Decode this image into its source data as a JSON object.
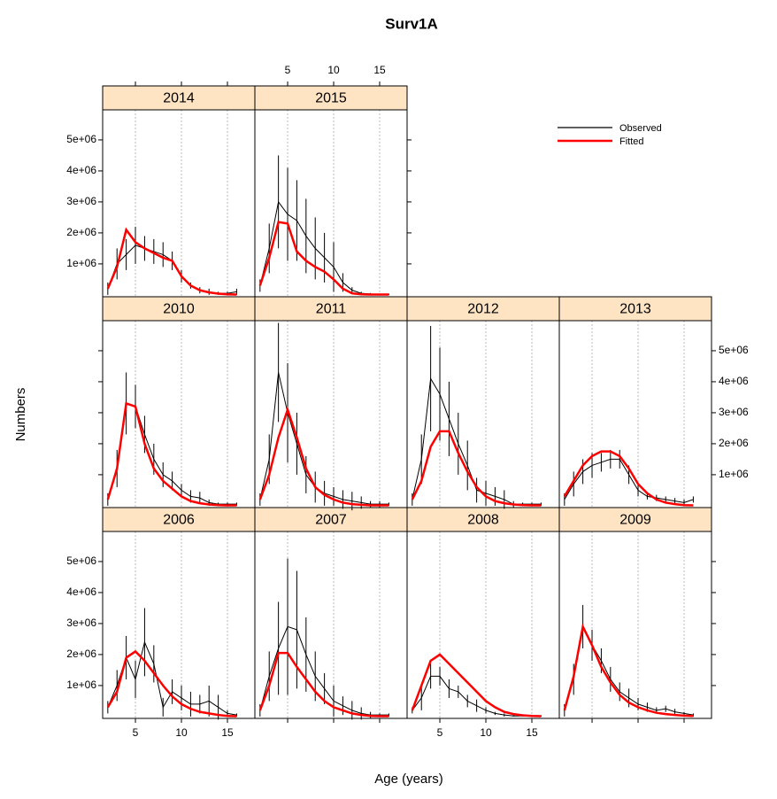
{
  "chart_data": {
    "type": "line",
    "title": "Surv1A",
    "x_label": "Age (years)",
    "y_label": "Numbers",
    "x": [
      2,
      3,
      4,
      5,
      6,
      7,
      8,
      9,
      10,
      11,
      12,
      13,
      14,
      15,
      16
    ],
    "xlim": [
      1.44,
      17.98
    ],
    "xticks": [
      5,
      10,
      15
    ],
    "ylim": [
      -60000,
      5970000
    ],
    "yticks": [
      {
        "value": 1000000,
        "label": "1e+06"
      },
      {
        "value": 2000000,
        "label": "2e+06"
      },
      {
        "value": 3000000,
        "label": "3e+06"
      },
      {
        "value": 4000000,
        "label": "4e+06"
      },
      {
        "value": 5000000,
        "label": "5e+06"
      }
    ],
    "grid": true,
    "legend": "top-right",
    "series": [
      {
        "name": "Observed",
        "color": "#000000"
      },
      {
        "name": "Fitted",
        "color": "#ff0000"
      }
    ],
    "panels": [
      {
        "title": "2006",
        "observed": [
          300000.0,
          1000000.0,
          1900000.0,
          1200000.0,
          2400000.0,
          1700000.0,
          300000.0,
          800000.0,
          600000.0,
          400000.0,
          400000.0,
          500000.0,
          300000.0,
          100000.0,
          50000.0
        ],
        "error": [
          200000.0,
          500000.0,
          700000.0,
          600000.0,
          1100000.0,
          600000.0,
          300000.0,
          400000.0,
          400000.0,
          400000.0,
          300000.0,
          500000.0,
          400000.0,
          100000.0,
          50000.0
        ],
        "fitted": [
          300000.0,
          800000.0,
          1900000.0,
          2100000.0,
          1800000.0,
          1400000.0,
          1000000.0,
          650000.0,
          400000.0,
          250000.0,
          150000.0,
          100000.0,
          50000.0,
          20000.0,
          10000.0
        ]
      },
      {
        "title": "2007",
        "observed": [
          200000.0,
          1300000.0,
          2200000.0,
          2900000.0,
          2800000.0,
          2000000.0,
          1300000.0,
          900000.0,
          500000.0,
          350000.0,
          200000.0,
          100000.0,
          50000.0,
          50000.0,
          50000.0
        ],
        "error": [
          200000.0,
          800000.0,
          1500000.0,
          2200000.0,
          1900000.0,
          1200000.0,
          800000.0,
          500000.0,
          500000.0,
          300000.0,
          300000.0,
          200000.0,
          100000.0,
          50000.0,
          50000.0
        ],
        "fitted": [
          200000.0,
          1000000.0,
          2050000.0,
          2050000.0,
          1600000.0,
          1200000.0,
          800000.0,
          500000.0,
          300000.0,
          200000.0,
          100000.0,
          50000.0,
          20000.0,
          10000.0,
          10000.0
        ]
      },
      {
        "title": "2008",
        "observed": [
          200000.0,
          600000.0,
          1300000.0,
          1300000.0,
          900000.0,
          800000.0,
          500000.0,
          350000.0,
          200000.0,
          100000.0,
          50000.0,
          20000.0,
          20000.0,
          20000.0,
          20000.0
        ],
        "error": [
          100000.0,
          400000.0,
          400000.0,
          300000.0,
          300000.0,
          200000.0,
          200000.0,
          200000.0,
          100000.0,
          50000.0,
          50000.0,
          20000.0,
          20000.0,
          20000.0,
          20000.0
        ],
        "fitted": [
          200000.0,
          1000000.0,
          1800000.0,
          2000000.0,
          1700000.0,
          1400000.0,
          1100000.0,
          800000.0,
          500000.0,
          300000.0,
          150000.0,
          80000.0,
          40000.0,
          20000.0,
          10000.0
        ]
      },
      {
        "title": "2009",
        "observed": [
          200000.0,
          1200000.0,
          2900000.0,
          2300000.0,
          1800000.0,
          1200000.0,
          800000.0,
          600000.0,
          400000.0,
          300000.0,
          200000.0,
          250000.0,
          150000.0,
          100000.0,
          50000.0
        ],
        "error": [
          200000.0,
          500000.0,
          700000.0,
          500000.0,
          400000.0,
          400000.0,
          300000.0,
          300000.0,
          200000.0,
          150000.0,
          100000.0,
          100000.0,
          100000.0,
          50000.0,
          50000.0
        ],
        "fitted": [
          200000.0,
          1300000.0,
          2900000.0,
          2300000.0,
          1600000.0,
          1100000.0,
          700000.0,
          450000.0,
          300000.0,
          200000.0,
          120000.0,
          80000.0,
          50000.0,
          30000.0,
          20000.0
        ]
      },
      {
        "title": "2010",
        "observed": [
          200000.0,
          1200000.0,
          3300000.0,
          3200000.0,
          2300000.0,
          1500000.0,
          1000000.0,
          800000.0,
          500000.0,
          300000.0,
          250000.0,
          100000.0,
          50000.0,
          50000.0,
          50000.0
        ],
        "error": [
          200000.0,
          600000.0,
          1000000.0,
          700000.0,
          600000.0,
          500000.0,
          400000.0,
          300000.0,
          200000.0,
          200000.0,
          200000.0,
          100000.0,
          50000.0,
          50000.0,
          50000.0
        ],
        "fitted": [
          200000.0,
          1200000.0,
          3300000.0,
          3200000.0,
          2000000.0,
          1200000.0,
          800000.0,
          550000.0,
          300000.0,
          150000.0,
          80000.0,
          40000.0,
          20000.0,
          10000.0,
          10000.0
        ]
      },
      {
        "title": "2011",
        "observed": [
          200000.0,
          1500000.0,
          4300000.0,
          3000000.0,
          2000000.0,
          1000000.0,
          600000.0,
          400000.0,
          300000.0,
          200000.0,
          150000.0,
          100000.0,
          50000.0,
          50000.0,
          50000.0
        ],
        "error": [
          200000.0,
          800000.0,
          1600000.0,
          1600000.0,
          1000000.0,
          600000.0,
          500000.0,
          400000.0,
          300000.0,
          300000.0,
          300000.0,
          200000.0,
          100000.0,
          100000.0,
          50000.0
        ],
        "fitted": [
          200000.0,
          1000000.0,
          2200000.0,
          3100000.0,
          2200000.0,
          1200000.0,
          600000.0,
          350000.0,
          200000.0,
          100000.0,
          50000.0,
          30000.0,
          10000.0,
          10000.0,
          10000.0
        ]
      },
      {
        "title": "2012",
        "observed": [
          200000.0,
          1500000.0,
          4100000.0,
          3600000.0,
          2800000.0,
          2000000.0,
          1300000.0,
          500000.0,
          400000.0,
          300000.0,
          200000.0,
          50000.0,
          50000.0,
          50000.0,
          50000.0
        ],
        "error": [
          200000.0,
          800000.0,
          1700000.0,
          1500000.0,
          1200000.0,
          1000000.0,
          800000.0,
          400000.0,
          400000.0,
          300000.0,
          300000.0,
          100000.0,
          50000.0,
          50000.0,
          50000.0
        ],
        "fitted": [
          200000.0,
          800000.0,
          1900000.0,
          2400000.0,
          2400000.0,
          1700000.0,
          1100000.0,
          600000.0,
          300000.0,
          150000.0,
          80000.0,
          40000.0,
          20000.0,
          10000.0,
          10000.0
        ]
      },
      {
        "title": "2013",
        "observed": [
          200000.0,
          700000.0,
          1100000.0,
          1300000.0,
          1400000.0,
          1500000.0,
          1500000.0,
          1000000.0,
          500000.0,
          300000.0,
          250000.0,
          200000.0,
          150000.0,
          100000.0,
          200000.0
        ],
        "error": [
          200000.0,
          400000.0,
          400000.0,
          400000.0,
          300000.0,
          300000.0,
          300000.0,
          300000.0,
          200000.0,
          100000.0,
          100000.0,
          100000.0,
          100000.0,
          100000.0,
          100000.0
        ],
        "fitted": [
          300000.0,
          800000.0,
          1300000.0,
          1600000.0,
          1750000.0,
          1750000.0,
          1600000.0,
          1200000.0,
          700000.0,
          400000.0,
          200000.0,
          100000.0,
          50000.0,
          20000.0,
          10000.0
        ]
      },
      {
        "title": "2014",
        "observed": [
          200000.0,
          1000000.0,
          1300000.0,
          1600000.0,
          1500000.0,
          1400000.0,
          1300000.0,
          1100000.0,
          600000.0,
          300000.0,
          150000.0,
          100000.0,
          50000.0,
          50000.0,
          100000.0
        ],
        "error": [
          200000.0,
          500000.0,
          500000.0,
          600000.0,
          400000.0,
          400000.0,
          400000.0,
          300000.0,
          200000.0,
          100000.0,
          100000.0,
          100000.0,
          50000.0,
          50000.0,
          100000.0
        ],
        "fitted": [
          200000.0,
          900000.0,
          2100000.0,
          1700000.0,
          1500000.0,
          1350000.0,
          1200000.0,
          1100000.0,
          600000.0,
          300000.0,
          150000.0,
          80000.0,
          40000.0,
          20000.0,
          10000.0
        ]
      },
      {
        "title": "2015",
        "observed": [
          300000.0,
          1500000.0,
          3000000.0,
          2600000.0,
          2400000.0,
          1900000.0,
          1500000.0,
          1200000.0,
          900000.0,
          400000.0,
          150000.0,
          50000.0,
          30000.0,
          20000.0,
          20000.0
        ],
        "error": [
          200000.0,
          800000.0,
          1500000.0,
          1500000.0,
          1300000.0,
          1200000.0,
          1000000.0,
          800000.0,
          800000.0,
          300000.0,
          100000.0,
          50000.0,
          30000.0,
          20000.0,
          20000.0
        ],
        "fitted": [
          300000.0,
          1200000.0,
          2350000.0,
          2300000.0,
          1400000.0,
          1100000.0,
          900000.0,
          750000.0,
          500000.0,
          200000.0,
          50000.0,
          20000.0,
          10000.0,
          10000.0,
          10000.0
        ]
      }
    ]
  }
}
